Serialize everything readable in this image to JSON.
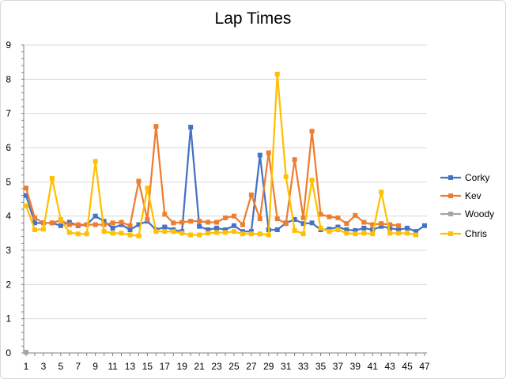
{
  "chart_data": {
    "type": "line",
    "title": "Lap Times",
    "xlabel": "",
    "ylabel": "",
    "ylim": [
      0,
      9
    ],
    "yticks": [
      0,
      1,
      2,
      3,
      4,
      5,
      6,
      7,
      8,
      9
    ],
    "xlim": [
      1,
      47
    ],
    "xtick_labels": [
      1,
      3,
      5,
      7,
      9,
      11,
      13,
      15,
      17,
      19,
      21,
      23,
      25,
      27,
      29,
      31,
      33,
      35,
      37,
      39,
      41,
      43,
      45,
      47
    ],
    "grid": "horizontal",
    "legend_position": "right",
    "series": [
      {
        "name": "Corky",
        "color": "#4472C4",
        "x": [
          1,
          2,
          3,
          4,
          5,
          6,
          7,
          8,
          9,
          10,
          11,
          12,
          13,
          14,
          15,
          16,
          17,
          18,
          19,
          20,
          21,
          22,
          23,
          24,
          25,
          26,
          27,
          28,
          29,
          30,
          31,
          32,
          33,
          34,
          35,
          36,
          37,
          38,
          39,
          40,
          41,
          42,
          43,
          44,
          45,
          46,
          47
        ],
        "values": [
          4.6,
          3.8,
          3.8,
          3.8,
          3.72,
          3.82,
          3.72,
          3.75,
          4.0,
          3.85,
          3.65,
          3.75,
          3.6,
          3.75,
          3.85,
          3.6,
          3.68,
          3.6,
          3.55,
          6.6,
          3.7,
          3.6,
          3.65,
          3.6,
          3.72,
          3.55,
          3.55,
          5.78,
          3.6,
          3.6,
          3.8,
          3.9,
          3.78,
          3.8,
          3.6,
          3.62,
          3.68,
          3.6,
          3.58,
          3.65,
          3.6,
          3.7,
          3.65,
          3.6,
          3.65,
          3.55,
          3.72
        ]
      },
      {
        "name": "Kev",
        "color": "#ED7D31",
        "x": [
          1,
          2,
          3,
          4,
          5,
          6,
          7,
          8,
          9,
          10,
          11,
          12,
          13,
          14,
          15,
          16,
          17,
          18,
          19,
          20,
          21,
          22,
          23,
          24,
          25,
          26,
          27,
          28,
          29,
          30,
          31,
          32,
          33,
          34,
          35,
          36,
          37,
          38,
          39,
          40,
          41,
          42,
          43,
          44
        ],
        "values": [
          4.82,
          3.95,
          3.8,
          3.8,
          3.88,
          3.75,
          3.75,
          3.75,
          3.75,
          3.75,
          3.8,
          3.82,
          3.72,
          5.02,
          3.9,
          6.62,
          4.05,
          3.8,
          3.82,
          3.85,
          3.85,
          3.82,
          3.82,
          3.95,
          4.0,
          3.75,
          4.62,
          3.92,
          5.85,
          3.92,
          3.78,
          5.65,
          3.95,
          6.48,
          4.05,
          3.98,
          3.95,
          3.78,
          4.02,
          3.82,
          3.75,
          3.78,
          3.75,
          3.72
        ]
      },
      {
        "name": "Woody",
        "color": "#A5A5A5",
        "x": [
          1
        ],
        "values": [
          0.02
        ]
      },
      {
        "name": "Chris",
        "color": "#FFC000",
        "x": [
          1,
          2,
          3,
          4,
          5,
          6,
          7,
          8,
          9,
          10,
          11,
          12,
          13,
          14,
          15,
          16,
          17,
          18,
          19,
          20,
          21,
          22,
          23,
          24,
          25,
          26,
          27,
          28,
          29,
          30,
          31,
          32,
          33,
          34,
          35,
          36,
          37,
          38,
          39,
          40,
          41,
          42,
          43,
          44,
          45,
          46
        ],
        "values": [
          4.3,
          3.6,
          3.62,
          5.1,
          3.9,
          3.52,
          3.48,
          3.48,
          5.6,
          3.55,
          3.5,
          3.5,
          3.45,
          3.42,
          4.82,
          3.55,
          3.55,
          3.55,
          3.5,
          3.45,
          3.45,
          3.5,
          3.52,
          3.52,
          3.55,
          3.48,
          3.48,
          3.48,
          3.45,
          8.15,
          5.15,
          3.58,
          3.48,
          5.05,
          3.65,
          3.55,
          3.6,
          3.5,
          3.48,
          3.5,
          3.48,
          4.7,
          3.5,
          3.5,
          3.5,
          3.45
        ]
      }
    ]
  }
}
